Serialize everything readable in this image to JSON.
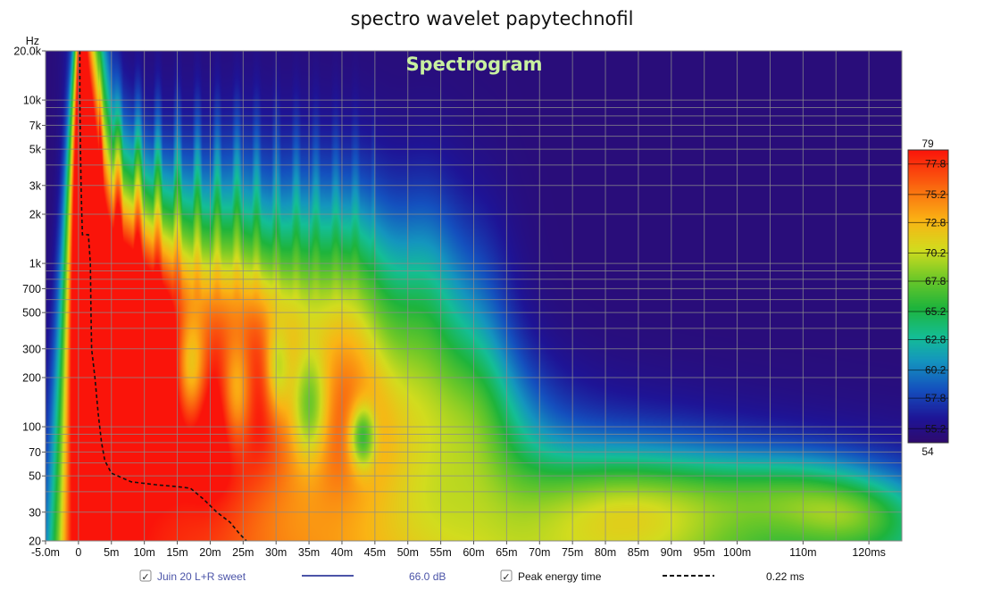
{
  "chart_data": {
    "type": "heatmap",
    "title": "spectro wavelet papytechnofil",
    "overlay_title": "Spectrogram",
    "y_unit_label": "Hz",
    "x_unit": "ms",
    "x_range_ms": [
      -5.0,
      125.0
    ],
    "y_range_hz": [
      20,
      20000
    ],
    "y_scale": "log",
    "grid": true,
    "x_ticks": [
      {
        "value": -5,
        "label": "-5.0m"
      },
      {
        "value": 0,
        "label": "0"
      },
      {
        "value": 5,
        "label": "5m"
      },
      {
        "value": 10,
        "label": "10m"
      },
      {
        "value": 15,
        "label": "15m"
      },
      {
        "value": 20,
        "label": "20m"
      },
      {
        "value": 25,
        "label": "25m"
      },
      {
        "value": 30,
        "label": "30m"
      },
      {
        "value": 35,
        "label": "35m"
      },
      {
        "value": 40,
        "label": "40m"
      },
      {
        "value": 45,
        "label": "45m"
      },
      {
        "value": 50,
        "label": "50m"
      },
      {
        "value": 55,
        "label": "55m"
      },
      {
        "value": 60,
        "label": "60m"
      },
      {
        "value": 65,
        "label": "65m"
      },
      {
        "value": 70,
        "label": "70m"
      },
      {
        "value": 75,
        "label": "75m"
      },
      {
        "value": 80,
        "label": "80m"
      },
      {
        "value": 85,
        "label": "85m"
      },
      {
        "value": 90,
        "label": "90m"
      },
      {
        "value": 95,
        "label": "95m"
      },
      {
        "value": 100,
        "label": "100m"
      },
      {
        "value": 110,
        "label": "110m"
      },
      {
        "value": 120,
        "label": "120ms"
      }
    ],
    "x_minor_ticks": [
      105,
      115
    ],
    "y_ticks": [
      {
        "value": 20,
        "label": "20"
      },
      {
        "value": 30,
        "label": "30"
      },
      {
        "value": 50,
        "label": "50"
      },
      {
        "value": 70,
        "label": "70"
      },
      {
        "value": 100,
        "label": "100"
      },
      {
        "value": 200,
        "label": "200"
      },
      {
        "value": 300,
        "label": "300"
      },
      {
        "value": 500,
        "label": "500"
      },
      {
        "value": 700,
        "label": "700"
      },
      {
        "value": 1000,
        "label": "1k"
      },
      {
        "value": 2000,
        "label": "2k"
      },
      {
        "value": 3000,
        "label": "3k"
      },
      {
        "value": 5000,
        "label": "5k"
      },
      {
        "value": 7000,
        "label": "7k"
      },
      {
        "value": 10000,
        "label": "10k"
      },
      {
        "value": 20000,
        "label": "20.0k"
      }
    ],
    "y_minor_ticks": [
      40,
      60,
      80,
      90,
      400,
      600,
      800,
      900,
      4000,
      6000,
      8000,
      9000
    ],
    "colorbar": {
      "min": 54,
      "max": 79,
      "min_label": "54",
      "max_label": "79",
      "unit": "dB",
      "ticks": [
        {
          "value": 77.8,
          "label": "77.8"
        },
        {
          "value": 75.2,
          "label": "75.2"
        },
        {
          "value": 72.8,
          "label": "72.8"
        },
        {
          "value": 70.2,
          "label": "70.2"
        },
        {
          "value": 67.8,
          "label": "67.8"
        },
        {
          "value": 65.2,
          "label": "65.2"
        },
        {
          "value": 62.8,
          "label": "62.8"
        },
        {
          "value": 60.2,
          "label": "60.2"
        },
        {
          "value": 57.8,
          "label": "57.8"
        },
        {
          "value": 55.2,
          "label": "55.2"
        }
      ]
    },
    "peak_energy_time": {
      "name": "Peak energy time",
      "points_ms_hz": [
        [
          0.2,
          20000
        ],
        [
          0.2,
          10000
        ],
        [
          0.3,
          5000
        ],
        [
          0.4,
          3000
        ],
        [
          0.5,
          2000
        ],
        [
          0.6,
          1500
        ],
        [
          1.5,
          1500
        ],
        [
          1.8,
          1000
        ],
        [
          1.9,
          500
        ],
        [
          2.0,
          300
        ],
        [
          2.5,
          200
        ],
        [
          3.0,
          120
        ],
        [
          3.5,
          80
        ],
        [
          4.0,
          62
        ],
        [
          5.0,
          52
        ],
        [
          8.0,
          46
        ],
        [
          12.0,
          44
        ],
        [
          15.0,
          43
        ],
        [
          17.0,
          42
        ],
        [
          19.0,
          36
        ],
        [
          21.0,
          30
        ],
        [
          23.0,
          26
        ],
        [
          24.5,
          22
        ],
        [
          25.5,
          20
        ]
      ]
    },
    "features": [
      {
        "type": "bg",
        "value": 54.6
      },
      {
        "type": "decay",
        "t0_ms": 0.5,
        "amp": 26,
        "tau_low_ms": 95,
        "tau_high_ms": 1.5
      },
      {
        "type": "blob",
        "t_ms": 1,
        "hz": 900,
        "dt_ms": 2.5,
        "doct": 1.6,
        "amp": 8
      },
      {
        "type": "blob",
        "t_ms": 2,
        "hz": 3000,
        "dt_ms": 2.5,
        "doct": 1.2,
        "amp": 8
      },
      {
        "type": "blob",
        "t_ms": 5.5,
        "hz": 400,
        "dt_ms": 4,
        "doct": 0.8,
        "amp": 9
      },
      {
        "type": "blob",
        "t_ms": 8,
        "hz": 700,
        "dt_ms": 4,
        "doct": 0.8,
        "amp": 8
      },
      {
        "type": "blob",
        "t_ms": 12,
        "hz": 350,
        "dt_ms": 4,
        "doct": 0.7,
        "amp": 9
      },
      {
        "type": "blob",
        "t_ms": 15,
        "hz": 700,
        "dt_ms": 5,
        "doct": 0.8,
        "amp": 7
      },
      {
        "type": "blob",
        "t_ms": 20,
        "hz": 400,
        "dt_ms": 5,
        "doct": 0.8,
        "amp": 9
      },
      {
        "type": "blob",
        "t_ms": 25,
        "hz": 800,
        "dt_ms": 5,
        "doct": 0.8,
        "amp": 7
      },
      {
        "type": "blob",
        "t_ms": 28,
        "hz": 300,
        "dt_ms": 5,
        "doct": 0.6,
        "amp": 9
      },
      {
        "type": "blob",
        "t_ms": 33,
        "hz": 600,
        "dt_ms": 5,
        "doct": 0.8,
        "amp": 8
      },
      {
        "type": "blob",
        "t_ms": 38,
        "hz": 350,
        "dt_ms": 5,
        "doct": 0.8,
        "amp": 7
      },
      {
        "type": "blob",
        "t_ms": 42,
        "hz": 500,
        "dt_ms": 5,
        "doct": 0.8,
        "amp": 7
      },
      {
        "type": "blob",
        "t_ms": 47,
        "hz": 300,
        "dt_ms": 6,
        "doct": 0.8,
        "amp": 7
      },
      {
        "type": "blob",
        "t_ms": 53,
        "hz": 450,
        "dt_ms": 5,
        "doct": 0.8,
        "amp": 6
      },
      {
        "type": "blob",
        "t_ms": 60,
        "hz": 300,
        "dt_ms": 6,
        "doct": 0.8,
        "amp": 5
      },
      {
        "type": "blob",
        "t_ms": 22,
        "hz": 90,
        "dt_ms": 9,
        "doct": 0.5,
        "amp": 6
      },
      {
        "type": "blob",
        "t_ms": 40,
        "hz": 90,
        "dt_ms": 10,
        "doct": 0.5,
        "amp": 5
      },
      {
        "type": "blob",
        "t_ms": 60,
        "hz": 110,
        "dt_ms": 10,
        "doct": 0.5,
        "amp": 5
      },
      {
        "type": "blob",
        "t_ms": 85,
        "hz": 33,
        "dt_ms": 18,
        "doct": 0.35,
        "amp": 8
      },
      {
        "type": "blob",
        "t_ms": 110,
        "hz": 40,
        "dt_ms": 14,
        "doct": 0.25,
        "amp": 6
      },
      {
        "type": "blob",
        "t_ms": 118,
        "hz": 28,
        "dt_ms": 10,
        "doct": 0.2,
        "amp": 5
      },
      {
        "type": "stripes",
        "t_start_ms": 3,
        "t_end_ms": 45,
        "period_ms": 3,
        "hz_low": 1200,
        "hz_high": 7000,
        "amp": 7,
        "tau_ms": 25
      },
      {
        "type": "hole",
        "t_ms": 17,
        "hz": 220,
        "dt_ms": 2.5,
        "doct": 0.35,
        "amp": -9
      },
      {
        "type": "hole",
        "t_ms": 24,
        "hz": 160,
        "dt_ms": 2.5,
        "doct": 0.35,
        "amp": -8
      },
      {
        "type": "hole",
        "t_ms": 35,
        "hz": 130,
        "dt_ms": 3,
        "doct": 0.35,
        "amp": -8
      },
      {
        "type": "hole",
        "t_ms": 43,
        "hz": 88,
        "dt_ms": 2,
        "doct": 0.2,
        "amp": -9
      },
      {
        "type": "hole",
        "t_ms": 30,
        "hz": 220,
        "dt_ms": 2,
        "doct": 0.3,
        "amp": -7
      }
    ],
    "legend": [
      {
        "checked": true,
        "label": "Juin 20 L+R sweet",
        "color": "#4b54a8",
        "line": "solid",
        "value": "66.0 dB"
      },
      {
        "checked": true,
        "label": "Peak energy time",
        "color": "#111111",
        "line": "dashed",
        "value": "0.22 ms"
      }
    ]
  }
}
